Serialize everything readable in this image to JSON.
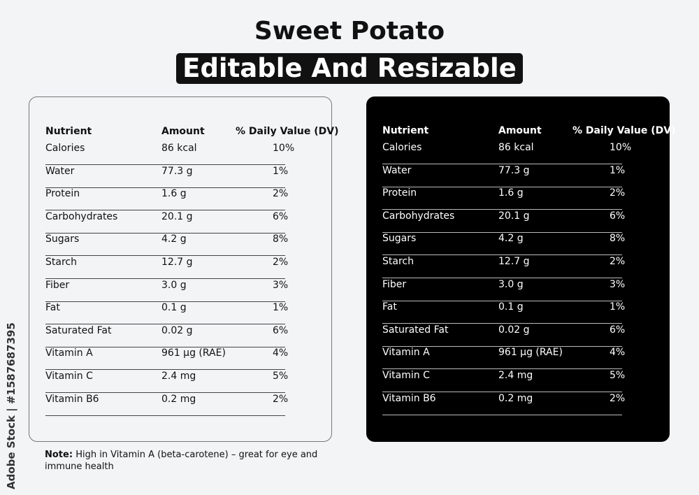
{
  "title": "Sweet Potato",
  "subtitle": "Editable And Resizable",
  "table": {
    "headers": {
      "nutrient": "Nutrient",
      "amount": "Amount",
      "dv": "% Daily Value (DV)"
    },
    "rows": [
      {
        "nutrient": "Calories",
        "amount": "86 kcal",
        "dv": "10%"
      },
      {
        "nutrient": "Water",
        "amount": "77.3 g",
        "dv": "1%"
      },
      {
        "nutrient": "Protein",
        "amount": "1.6 g",
        "dv": "2%"
      },
      {
        "nutrient": "Carbohydrates",
        "amount": "20.1 g",
        "dv": "6%"
      },
      {
        "nutrient": "Sugars",
        "amount": "4.2 g",
        "dv": "8%"
      },
      {
        "nutrient": "Starch",
        "amount": "12.7 g",
        "dv": "2%"
      },
      {
        "nutrient": "Fiber",
        "amount": "3.0 g",
        "dv": "3%"
      },
      {
        "nutrient": "Fat",
        "amount": "0.1 g",
        "dv": "1%"
      },
      {
        "nutrient": "Saturated Fat",
        "amount": "0.02 g",
        "dv": "6%"
      },
      {
        "nutrient": "Vitamin A",
        "amount": "961 µg (RAE)",
        "dv": "4%"
      },
      {
        "nutrient": "Vitamin C",
        "amount": "2.4 mg",
        "dv": "5%"
      },
      {
        "nutrient": "Vitamin B6",
        "amount": "0.2 mg",
        "dv": "2%"
      }
    ]
  },
  "note": {
    "label": "Note:",
    "text": "High in Vitamin A (beta-carotene) – great for eye and immune health"
  },
  "stock_id": "Adobe Stock | #1587687395",
  "colors": {
    "background": "#f3f4f6",
    "dark_panel": "#000000",
    "text": "#111111"
  }
}
